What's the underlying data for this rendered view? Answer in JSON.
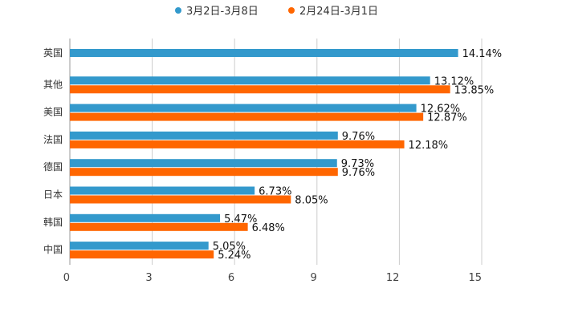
{
  "chart_data": {
    "type": "bar",
    "orientation": "horizontal",
    "categories": [
      "英国",
      "其他",
      "美国",
      "法国",
      "德国",
      "日本",
      "韩国",
      "中国"
    ],
    "series": [
      {
        "name": "3月2日-3月8日",
        "color": "#3399cc",
        "values": [
          14.14,
          13.12,
          12.62,
          9.76,
          9.73,
          6.73,
          5.47,
          5.05
        ],
        "labels": [
          "14.14%",
          "13.12%",
          "12.62%",
          "9.76%",
          "9.73%",
          "6.73%",
          "5.47%",
          "5.05%"
        ]
      },
      {
        "name": "2月24日-3月1日",
        "color": "#ff6600",
        "values": [
          null,
          13.85,
          12.87,
          12.18,
          9.76,
          8.05,
          6.48,
          5.24
        ],
        "labels": [
          null,
          "13.85%",
          "12.87%",
          "12.18%",
          "9.76%",
          "8.05%",
          "6.48%",
          "5.24%"
        ]
      }
    ],
    "xlim": [
      0,
      15
    ],
    "xticks": [
      0,
      3,
      6,
      9,
      12,
      15
    ],
    "xtick_labels": [
      "0",
      "3",
      "6",
      "9",
      "12",
      "15"
    ],
    "grid": true,
    "legend_position": "top-center",
    "title": "",
    "xlabel": "",
    "ylabel": ""
  },
  "colors": {
    "grid": "#cccccc",
    "axis": "#999999"
  }
}
